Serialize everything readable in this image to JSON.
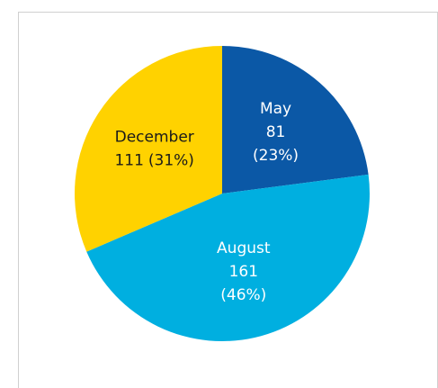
{
  "chart_data": {
    "type": "pie",
    "categories": [
      "May",
      "August",
      "December"
    ],
    "values": [
      81,
      161,
      111
    ],
    "percents": [
      23,
      46,
      31
    ],
    "percent_labels": [
      "(23%)",
      "(46%)",
      "(31%)"
    ],
    "colors": [
      "#0b58a6",
      "#00afe0",
      "#ffd200"
    ],
    "label_colors": [
      "#ffffff",
      "#ffffff",
      "#1a1a1a"
    ]
  }
}
